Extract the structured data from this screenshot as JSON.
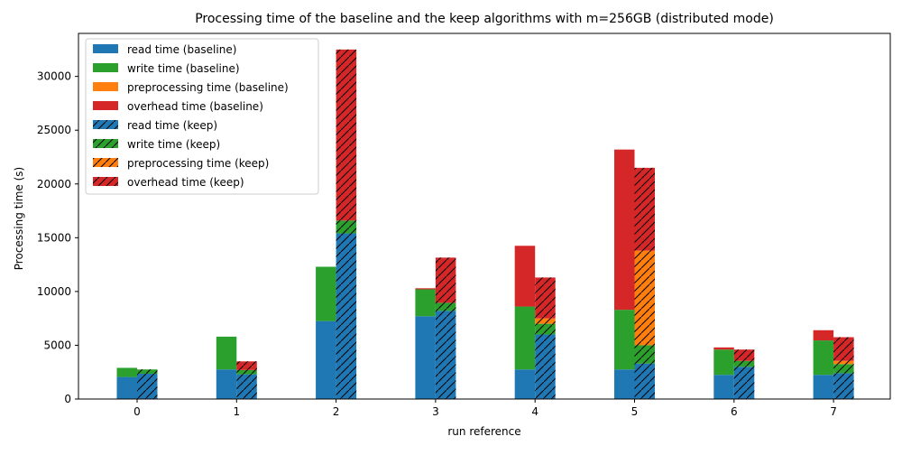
{
  "chart_data": {
    "type": "bar",
    "stacked": true,
    "grouped": true,
    "title": "Processing time of the baseline and the keep algorithms with m=256GB (distributed mode)",
    "xlabel": "run reference",
    "ylabel": "Processing time (s)",
    "categories": [
      "0",
      "1",
      "2",
      "3",
      "4",
      "5",
      "6",
      "7"
    ],
    "ylim": [
      0,
      34000
    ],
    "yticks": [
      "0",
      "5000",
      "10000",
      "15000",
      "20000",
      "25000",
      "30000"
    ],
    "ytick_values": [
      0,
      5000,
      10000,
      15000,
      20000,
      25000,
      30000
    ],
    "grid": false,
    "legend_position": "top-left",
    "colors": {
      "read": "#1f77b4",
      "write": "#2ca02c",
      "preprocessing": "#ff7f0e",
      "overhead": "#d62728"
    },
    "groups": [
      {
        "group": "baseline",
        "hatch": false,
        "series": [
          {
            "name": "read time (baseline)",
            "component": "read",
            "values": [
              2050,
              2750,
              7250,
              7700,
              2750,
              2750,
              2250,
              2250
            ]
          },
          {
            "name": "write time (baseline)",
            "component": "write",
            "values": [
              850,
              3050,
              5050,
              2500,
              5850,
              5550,
              2350,
              3200
            ]
          },
          {
            "name": "preprocessing time (baseline)",
            "component": "preprocessing",
            "values": [
              0,
              0,
              0,
              0,
              0,
              0,
              0,
              0
            ]
          },
          {
            "name": "overhead time (baseline)",
            "component": "overhead",
            "values": [
              0,
              0,
              0,
              100,
              5650,
              14900,
              200,
              950
            ]
          }
        ]
      },
      {
        "group": "keep",
        "hatch": true,
        "series": [
          {
            "name": "read time (keep)",
            "component": "read",
            "values": [
              2350,
              2300,
              15400,
              8200,
              6000,
              3300,
              3000,
              2400
            ]
          },
          {
            "name": "write time (keep)",
            "component": "write",
            "values": [
              400,
              400,
              1200,
              750,
              1000,
              1700,
              550,
              850
            ]
          },
          {
            "name": "preprocessing time (keep)",
            "component": "preprocessing",
            "values": [
              0,
              0,
              0,
              0,
              500,
              8800,
              0,
              300
            ]
          },
          {
            "name": "overhead time (keep)",
            "component": "overhead",
            "values": [
              0,
              800,
              15900,
              4200,
              3800,
              7700,
              1050,
              2200
            ]
          }
        ]
      }
    ]
  }
}
